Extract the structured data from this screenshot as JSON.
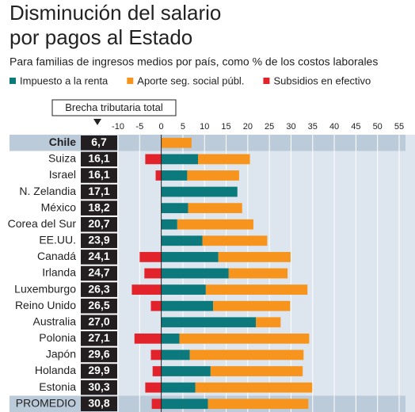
{
  "chart_data": {
    "type": "bar",
    "title": "Disminución del salario",
    "title_line2": "por pagos al Estado",
    "subtitle": "Para familias de ingresos medios por país, como % de los costos laborales",
    "total_label": "Brecha tributaria total",
    "categories": [
      "Chile",
      "Suiza",
      "Israel",
      "N. Zelandia",
      "México",
      "Corea del Sur",
      "EE.UU.",
      "Canadá",
      "Irlanda",
      "Luxemburgo",
      "Reino Unido",
      "Australia",
      "Polonia",
      "Japón",
      "Holanda",
      "Estonia",
      "PROMEDIO"
    ],
    "totals": [
      6.7,
      16.1,
      16.1,
      17.1,
      18.2,
      20.7,
      23.9,
      24.1,
      24.7,
      26.3,
      26.5,
      27.0,
      27.1,
      29.6,
      29.9,
      30.3,
      30.8
    ],
    "total_value_labels": [
      "6,7",
      "16,1",
      "16,1",
      "17,1",
      "18,2",
      "20,7",
      "23,9",
      "24,1",
      "24,7",
      "26,3",
      "26,5",
      "27,0",
      "27,1",
      "29,6",
      "29,9",
      "30,3",
      "30,8"
    ],
    "series": [
      {
        "name": "Impuesto a la renta",
        "color": "#0c7a7c",
        "values": [
          0,
          8.5,
          6,
          17.6,
          6.2,
          3.7,
          9.5,
          13.2,
          15.6,
          10.3,
          12,
          21.9,
          4.2,
          6.6,
          11.4,
          7.9,
          10.8
        ]
      },
      {
        "name": "Aporte seg. social públ.",
        "color": "#f7941d",
        "values": [
          7,
          12,
          12,
          0,
          12.5,
          17.6,
          15,
          16.7,
          13.6,
          23.5,
          17.8,
          5.7,
          30,
          26.3,
          21.3,
          27,
          23.2
        ]
      },
      {
        "name": "Subsidios en efectivo",
        "color": "#e3232c",
        "values": [
          0,
          -3.7,
          -1.3,
          0,
          0,
          0,
          0,
          -5,
          -3.9,
          -6.8,
          -2.4,
          0,
          -6.2,
          -2.4,
          -2,
          -3.7,
          -2.2
        ]
      }
    ],
    "xlim": [
      -10,
      55
    ],
    "xticks": [
      -10,
      -5,
      0,
      5,
      10,
      15,
      20,
      25,
      30,
      35,
      40,
      45,
      50,
      55
    ],
    "grid": true
  }
}
